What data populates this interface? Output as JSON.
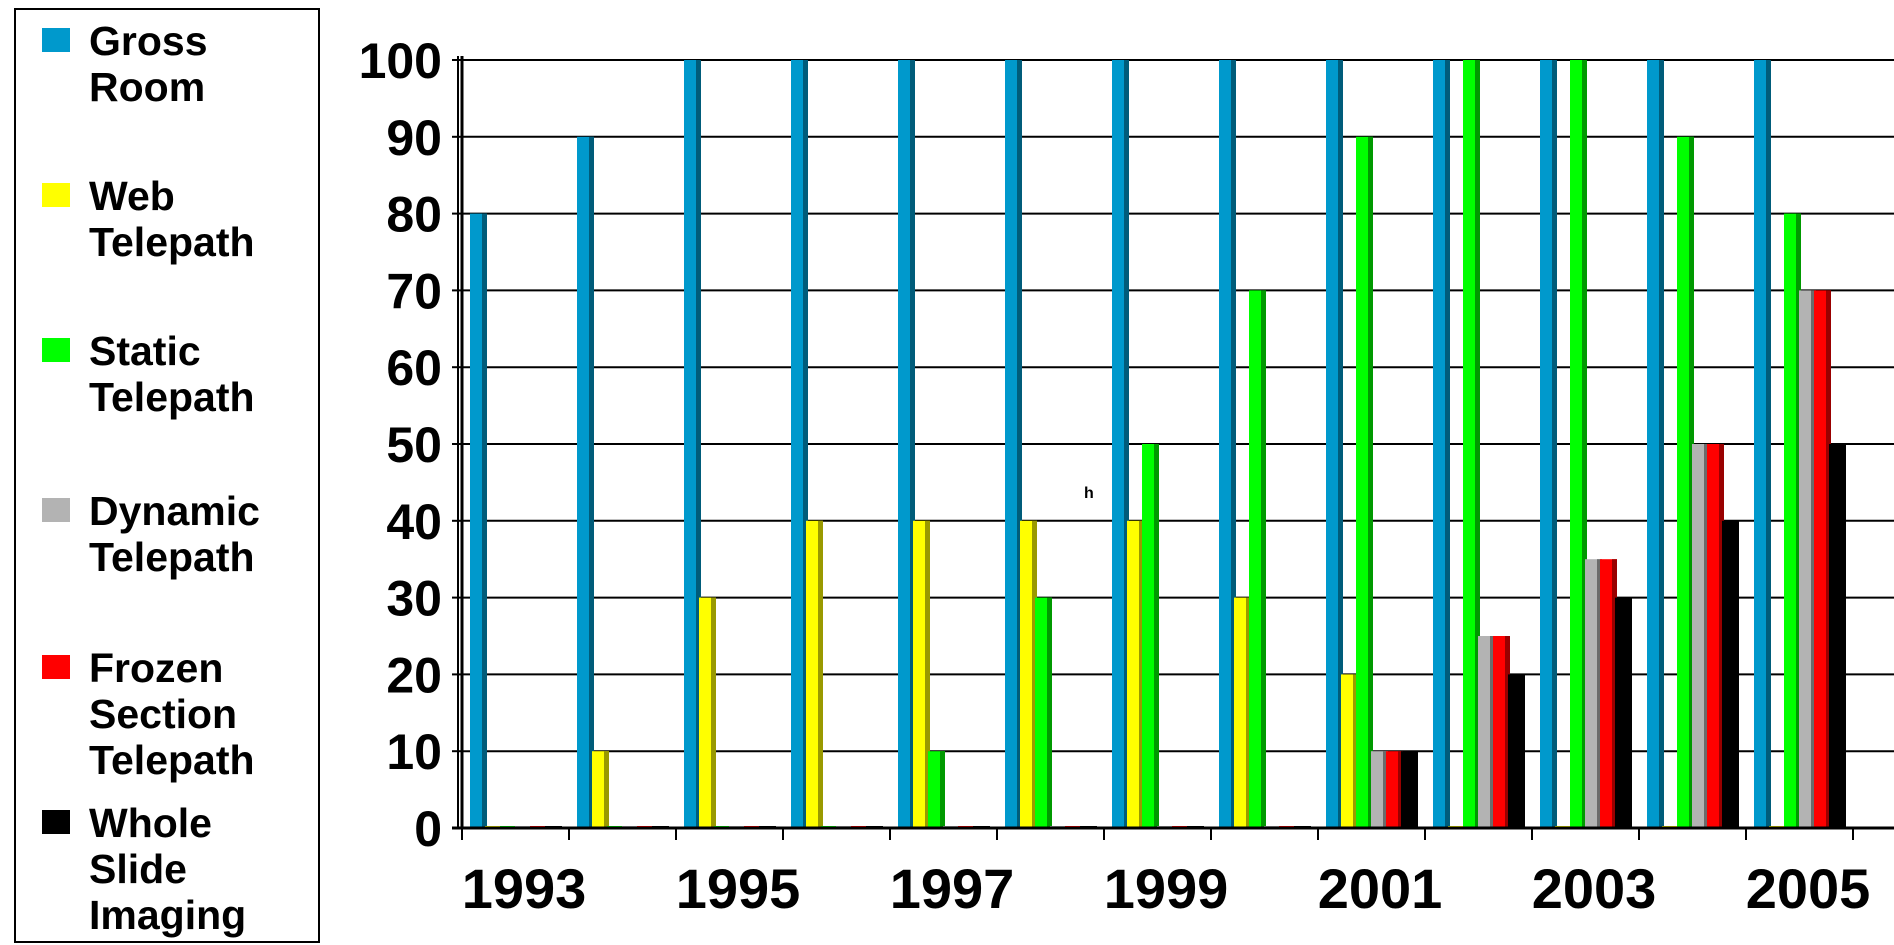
{
  "chart_data": {
    "type": "bar",
    "title": "",
    "xlabel": "",
    "ylabel": "",
    "ylim": [
      0,
      100
    ],
    "yticks": [
      0,
      10,
      20,
      30,
      40,
      50,
      60,
      70,
      80,
      90,
      100
    ],
    "grid": true,
    "legend_position": "left",
    "categories": [
      "1993",
      "1994",
      "1995",
      "1996",
      "1997",
      "1998",
      "1999",
      "2000",
      "2001",
      "2002",
      "2003",
      "2004",
      "2005"
    ],
    "x_tick_labels": [
      "1993",
      "1995",
      "1997",
      "1999",
      "2001",
      "2003",
      "2005"
    ],
    "annotations": [
      "h"
    ],
    "series": [
      {
        "name": "Gross Room",
        "color": "#0099cc",
        "values": [
          80,
          90,
          100,
          100,
          100,
          100,
          100,
          100,
          100,
          100,
          100,
          100,
          100
        ]
      },
      {
        "name": "Web Telepath",
        "color": "#ffff00",
        "values": [
          0,
          10,
          30,
          40,
          40,
          40,
          40,
          30,
          20,
          0,
          0,
          0,
          0
        ]
      },
      {
        "name": "Static Telepath",
        "color": "#00ff00",
        "values": [
          0,
          0,
          0,
          0,
          10,
          30,
          50,
          70,
          90,
          100,
          100,
          90,
          80
        ]
      },
      {
        "name": "Dynamic Telepath",
        "color": "#b3b3b3",
        "values": [
          0,
          0,
          0,
          0,
          0,
          0,
          0,
          0,
          10,
          25,
          35,
          50,
          70
        ]
      },
      {
        "name": "Frozen Section Telepath",
        "color": "#ff0000",
        "values": [
          0,
          0,
          0,
          0,
          0,
          0,
          0,
          0,
          10,
          25,
          35,
          50,
          70
        ]
      },
      {
        "name": "Whole Slide Imaging",
        "color": "#000000",
        "values": [
          0,
          0,
          0,
          0,
          0,
          0,
          0,
          0,
          10,
          20,
          30,
          40,
          50
        ]
      }
    ]
  },
  "legend": {
    "items": [
      {
        "label": "Gross\nRoom",
        "color": "#0099cc"
      },
      {
        "label": "Web\nTelepath",
        "color": "#ffff00"
      },
      {
        "label": "Static\nTelepath",
        "color": "#00ff00"
      },
      {
        "label": "Dynamic\nTelepath",
        "color": "#b3b3b3"
      },
      {
        "label": "Frozen\nSection\nTelepath",
        "color": "#ff0000"
      },
      {
        "label": "Whole\nSlide\nImaging",
        "color": "#000000"
      }
    ]
  }
}
